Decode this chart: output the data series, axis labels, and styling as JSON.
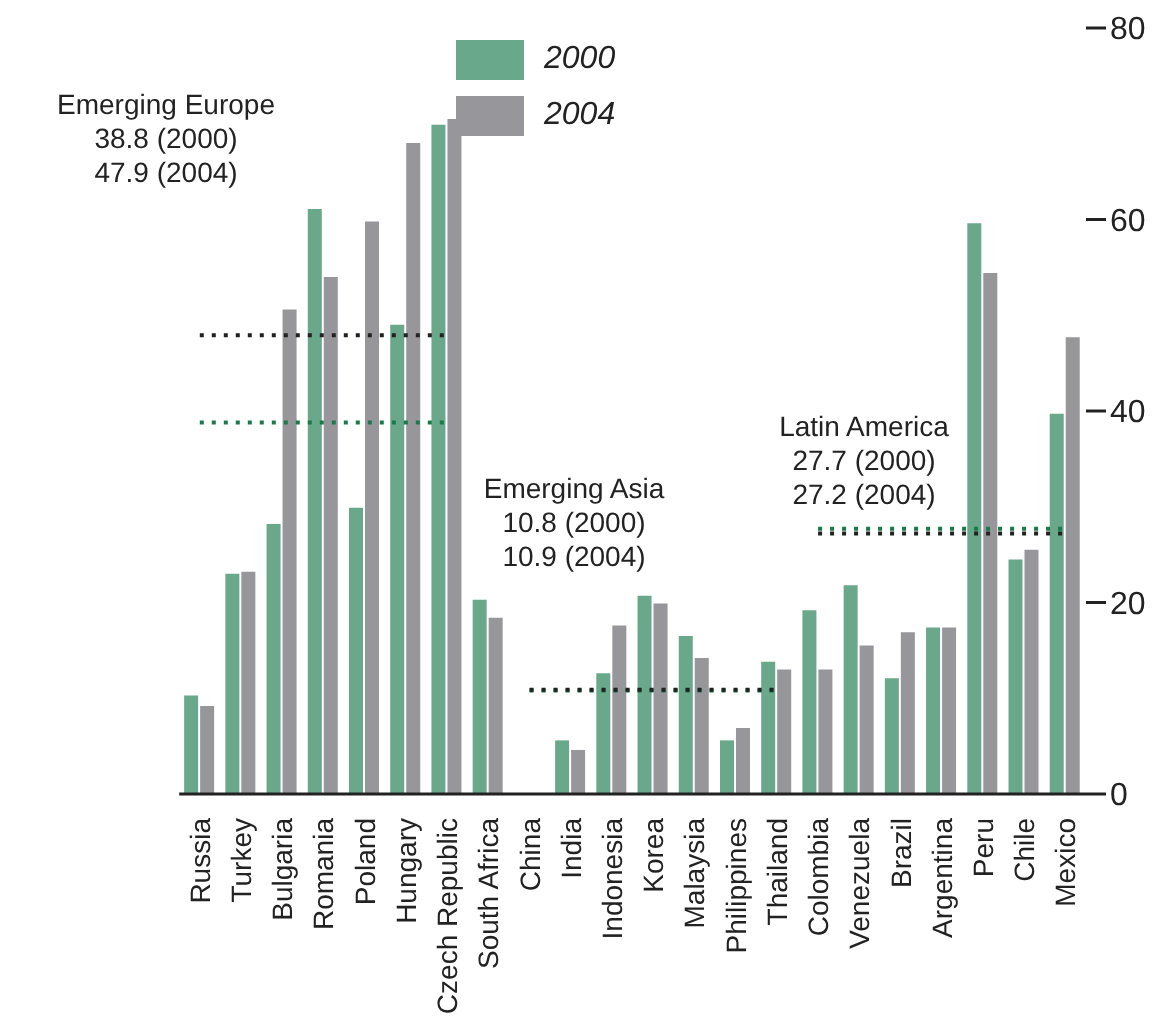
{
  "chart_data": {
    "type": "bar",
    "categories": [
      "Russia",
      "Turkey",
      "Bulgaria",
      "Romania",
      "Poland",
      "Hungary",
      "Czech Republic",
      "South Africa",
      "China",
      "India",
      "Indonesia",
      "Korea",
      "Malaysia",
      "Philippines",
      "Thailand",
      "Colombia",
      "Venezuela",
      "Brazil",
      "Argentina",
      "Peru",
      "Chile",
      "Mexico"
    ],
    "series": [
      {
        "name": "2000",
        "color": "#69a88a",
        "values": [
          10.3,
          23.0,
          28.2,
          61.1,
          29.9,
          49.0,
          69.9,
          20.3,
          0,
          5.6,
          12.6,
          20.7,
          16.5,
          5.6,
          13.8,
          19.2,
          21.8,
          12.1,
          17.4,
          59.6,
          24.5,
          39.7
        ]
      },
      {
        "name": "2004",
        "color": "#96969b",
        "values": [
          9.2,
          23.2,
          50.6,
          54.0,
          59.8,
          68.0,
          70.5,
          18.4,
          0,
          4.6,
          17.6,
          19.9,
          14.2,
          6.9,
          13.0,
          13.0,
          15.5,
          16.9,
          17.4,
          54.4,
          25.5,
          47.7
        ]
      }
    ],
    "ylim": [
      0,
      80
    ],
    "yticks": [
      0,
      20,
      40,
      60,
      80
    ],
    "legend": "top",
    "ref_lines": [
      {
        "axis": "y",
        "value": 38.8,
        "color": "#1a7a4a",
        "line_style": "dotted"
      },
      {
        "axis": "y",
        "value": 47.9,
        "color": "#222222",
        "line_style": "dotted"
      },
      {
        "axis": "y",
        "value": 10.8,
        "color": "#1a7a4a",
        "line_style": "dotted"
      },
      {
        "axis": "y",
        "value": 10.9,
        "color": "#222222",
        "line_style": "dotted"
      },
      {
        "axis": "y",
        "value": 27.7,
        "color": "#1a7a4a",
        "line_style": "dotted"
      },
      {
        "axis": "y",
        "value": 27.2,
        "color": "#222222",
        "line_style": "dotted"
      }
    ],
    "annotations": [
      "Emerging Europe\n38.8 (2000)\n47.9 (2004)",
      "Emerging Asia\n10.8 (2000)\n10.9 (2004)",
      "Latin America\n27.7 (2000)\n27.2 (2004)"
    ]
  }
}
